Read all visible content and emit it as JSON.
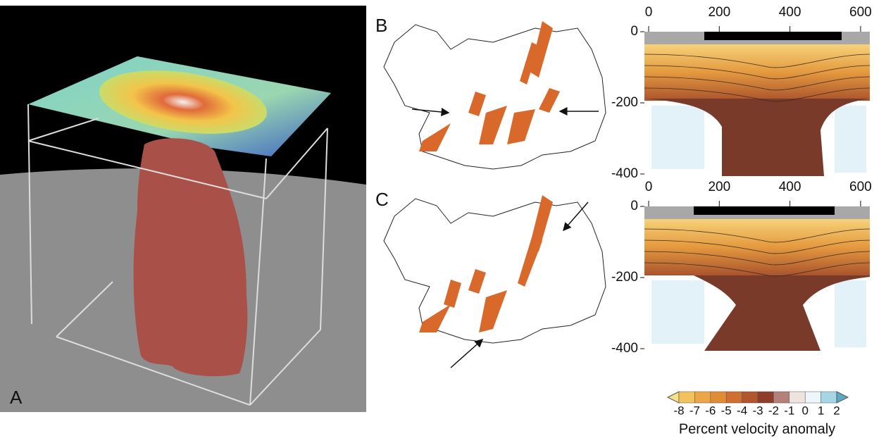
{
  "panels": [
    {
      "label": "A"
    },
    {
      "label": "B"
    },
    {
      "label": "C"
    }
  ],
  "sections": [
    {
      "xticks": [
        0,
        200,
        400,
        600
      ],
      "yticks": [
        0,
        -200,
        -400
      ]
    },
    {
      "xticks": [
        0,
        200,
        400,
        600
      ],
      "yticks": [
        0,
        -200,
        -400
      ]
    }
  ],
  "colorbar": {
    "ticks": [
      -8,
      -7,
      -6,
      -5,
      -4,
      -3,
      -2,
      -1,
      0,
      1,
      2
    ],
    "colors": [
      "#f8e08a",
      "#f3c25c",
      "#eca646",
      "#e08b37",
      "#cf7030",
      "#b2562d",
      "#8d3d2a",
      "#b48078",
      "#efe3e0",
      "#eef6fa",
      "#a6d6e6",
      "#5aaac4"
    ],
    "label": "Percent velocity anomaly"
  }
}
